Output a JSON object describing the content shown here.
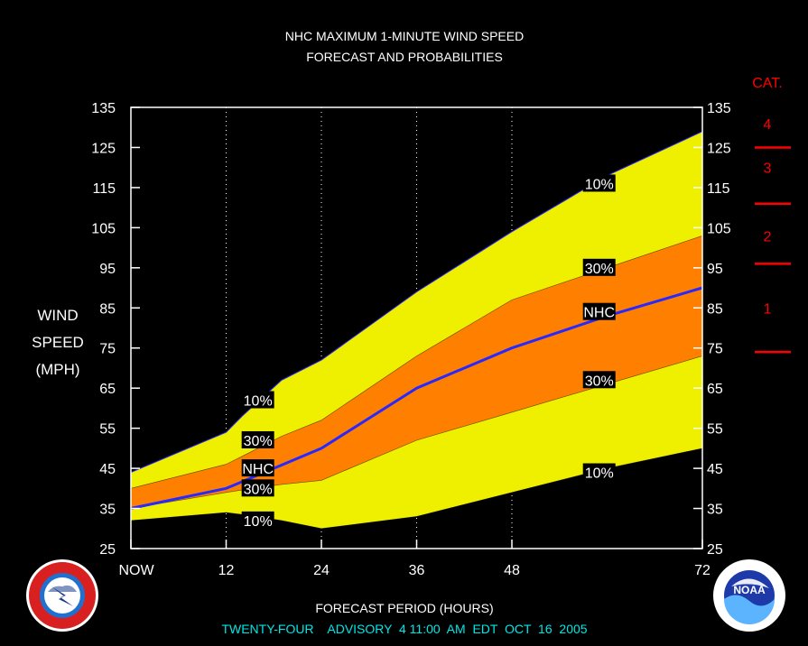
{
  "chart_data": {
    "type": "area",
    "title": "NHC MAXIMUM 1-MINUTE WIND SPEED",
    "subtitle": "FORECAST AND PROBABILITIES",
    "ylabel": [
      "WIND",
      "SPEED",
      "(MPH)"
    ],
    "xlabel": "FORECAST PERIOD (HOURS)",
    "ylim": [
      25,
      135
    ],
    "xlim": [
      0,
      72
    ],
    "y_ticks": [
      25,
      35,
      45,
      55,
      65,
      75,
      85,
      95,
      105,
      115,
      125,
      135
    ],
    "x_ticks": [
      {
        "x": 0,
        "label": "NOW"
      },
      {
        "x": 12,
        "label": "12"
      },
      {
        "x": 24,
        "label": "24"
      },
      {
        "x": 36,
        "label": "36"
      },
      {
        "x": 48,
        "label": "48"
      },
      {
        "x": 72,
        "label": "72"
      }
    ],
    "colors": {
      "background": "#000000",
      "band_10": "#eef000",
      "band_30": "#ff8000",
      "nhc_line": "#2828ff",
      "grid": "#ffffff",
      "category": "#ff0000",
      "advisory": "#00e6e6"
    },
    "upper_10": {
      "x": [
        0,
        12,
        14,
        19,
        24,
        36,
        48,
        60,
        72
      ],
      "y": [
        44,
        54,
        58,
        67,
        72,
        89,
        104,
        118,
        129
      ]
    },
    "upper_30": {
      "x": [
        0,
        12,
        14,
        19,
        24,
        36,
        48,
        60,
        72
      ],
      "y": [
        40,
        46,
        48,
        53,
        57,
        73,
        87,
        95,
        103
      ]
    },
    "nhc": {
      "x": [
        0,
        12,
        24,
        36,
        48,
        60,
        72
      ],
      "y": [
        35,
        40,
        50,
        65,
        75,
        83,
        90
      ]
    },
    "lower_30": {
      "x": [
        0,
        12,
        14,
        19,
        24,
        36,
        48,
        60,
        72
      ],
      "y": [
        35,
        39,
        39.6,
        41,
        42,
        52,
        59,
        66,
        73
      ]
    },
    "lower_10": {
      "x": [
        0,
        12,
        14,
        19,
        24,
        36,
        48,
        60,
        72
      ],
      "y": [
        32,
        34,
        33.5,
        32,
        30,
        33,
        39,
        45,
        50
      ]
    },
    "band_labels": [
      {
        "text": "10%",
        "x": 16,
        "y": 62
      },
      {
        "text": "30%",
        "x": 16,
        "y": 52
      },
      {
        "text": "NHC",
        "x": 16,
        "y": 45
      },
      {
        "text": "30%",
        "x": 16,
        "y": 40
      },
      {
        "text": "10%",
        "x": 16,
        "y": 32
      },
      {
        "text": "10%",
        "x": 59,
        "y": 116
      },
      {
        "text": "30%",
        "x": 59,
        "y": 95
      },
      {
        "text": "NHC",
        "x": 59,
        "y": 84
      },
      {
        "text": "30%",
        "x": 59,
        "y": 67
      },
      {
        "text": "10%",
        "x": 59,
        "y": 44
      }
    ],
    "category_scale": {
      "title": "CAT.",
      "labels": [
        {
          "text": "4",
          "y": 131
        },
        {
          "text": "3",
          "y": 120
        },
        {
          "text": "2",
          "y": 103
        },
        {
          "text": "1",
          "y": 85
        }
      ],
      "boundaries": [
        125,
        111,
        96,
        74
      ]
    },
    "advisory": "TWENTY-FOUR    ADVISORY  4 11:00  AM  EDT  OCT  16  2005"
  },
  "logos": {
    "left": "nws-logo",
    "right": "noaa-logo",
    "noaa_text": "NOAA"
  }
}
